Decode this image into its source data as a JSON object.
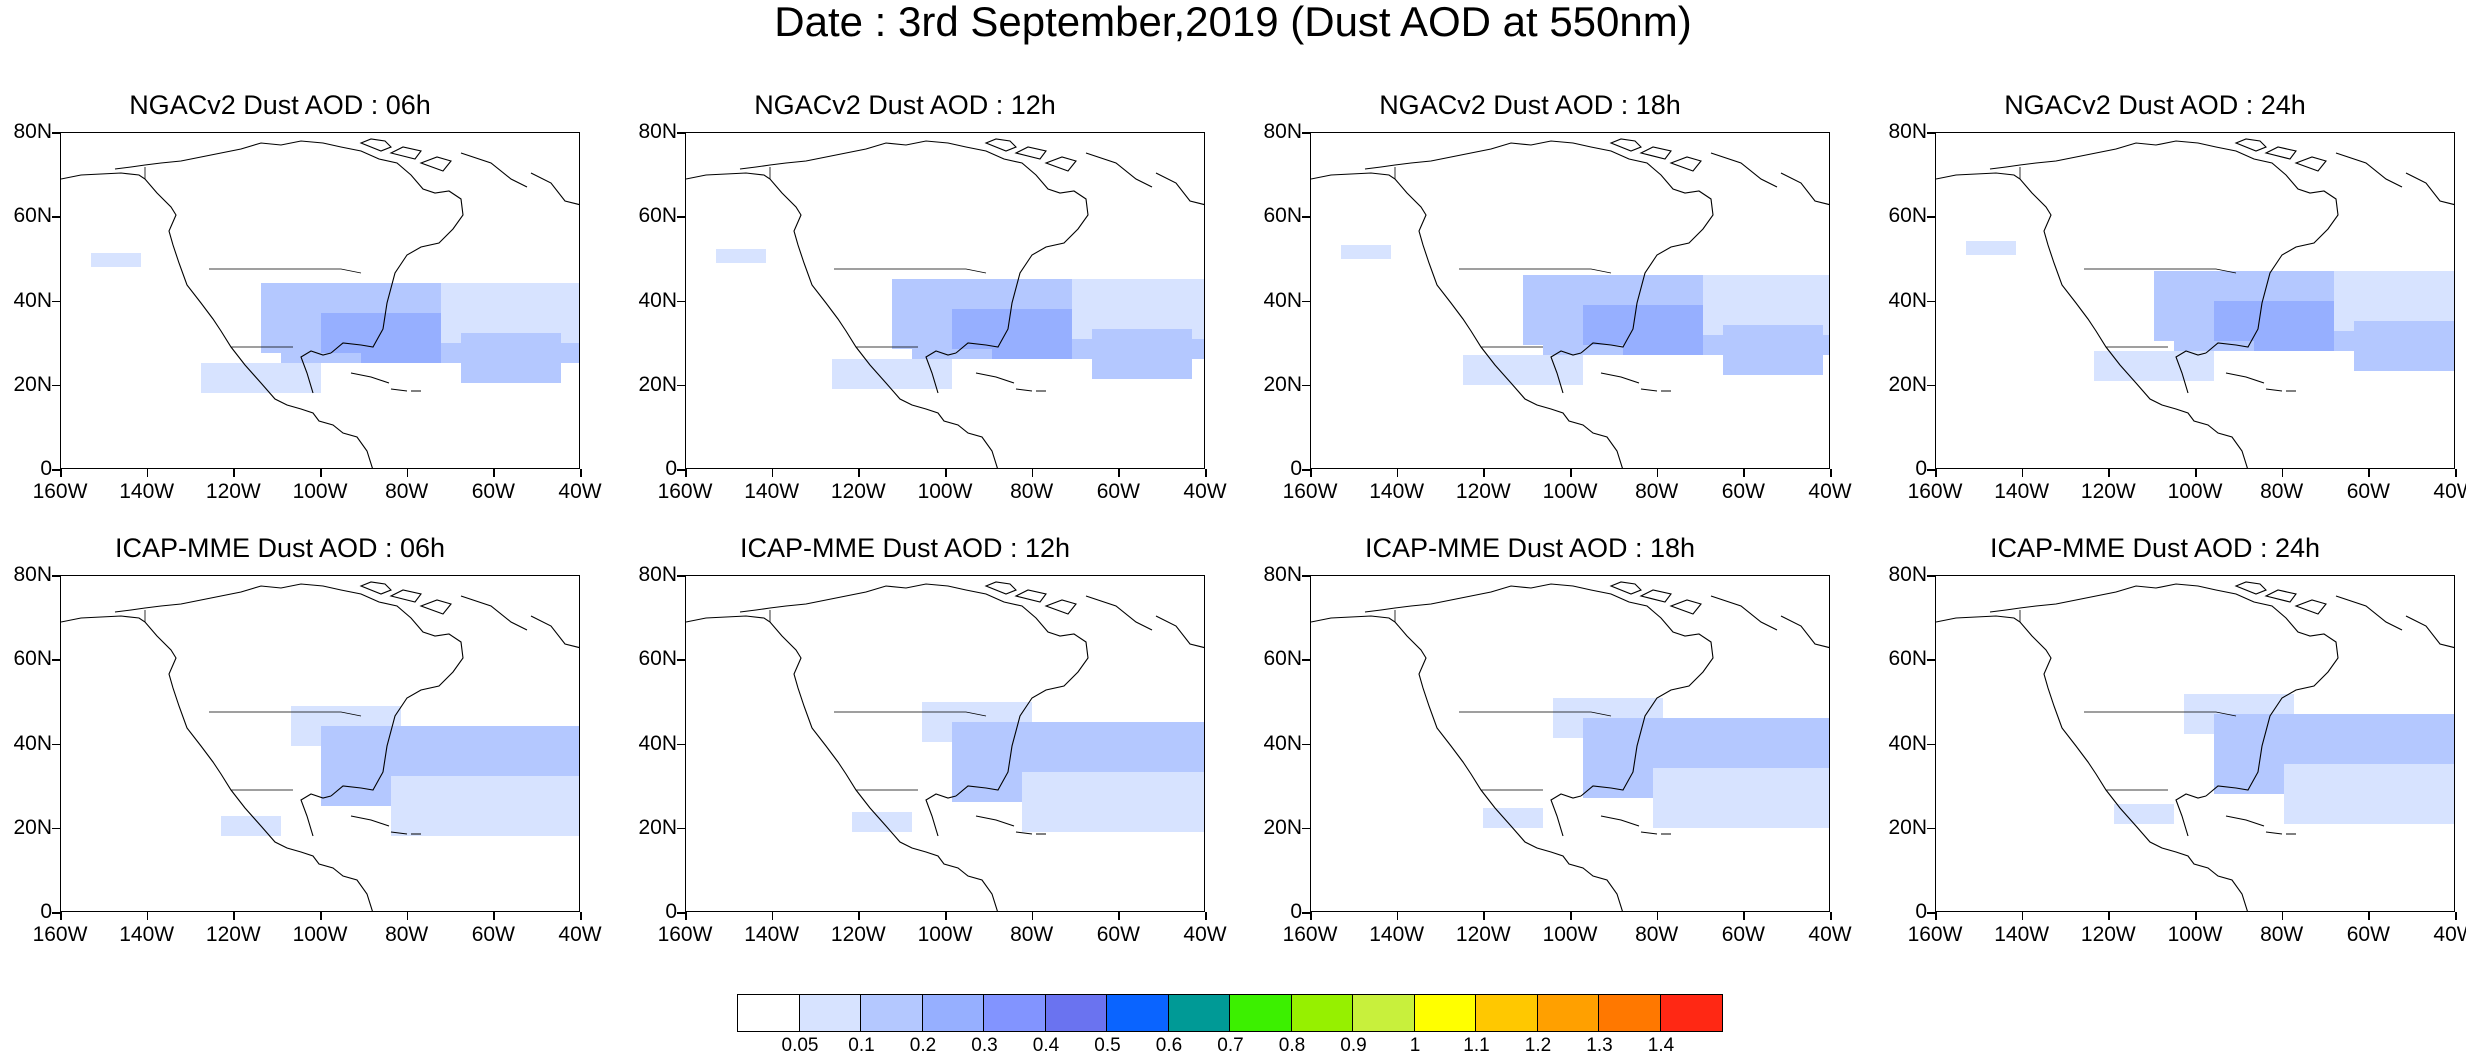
{
  "title": "Date : 3rd September,2019 (Dust AOD at 550nm)",
  "lat_labels": [
    "80N",
    "60N",
    "40N",
    "20N",
    "0"
  ],
  "lon_labels": [
    "160W",
    "140W",
    "120W",
    "100W",
    "80W",
    "60W",
    "40W"
  ],
  "panels": [
    {
      "title": "NGACv2 Dust AOD : 06h",
      "model": "NGACv2",
      "hour": "06h"
    },
    {
      "title": "NGACv2 Dust AOD : 12h",
      "model": "NGACv2",
      "hour": "12h"
    },
    {
      "title": "NGACv2 Dust AOD : 18h",
      "model": "NGACv2",
      "hour": "18h"
    },
    {
      "title": "NGACv2 Dust AOD : 24h",
      "model": "NGACv2",
      "hour": "24h"
    },
    {
      "title": "ICAP-MME Dust AOD : 06h",
      "model": "ICAP-MME",
      "hour": "06h"
    },
    {
      "title": "ICAP-MME Dust AOD : 12h",
      "model": "ICAP-MME",
      "hour": "12h"
    },
    {
      "title": "ICAP-MME Dust AOD : 18h",
      "model": "ICAP-MME",
      "hour": "18h"
    },
    {
      "title": "ICAP-MME Dust AOD : 24h",
      "model": "ICAP-MME",
      "hour": "24h"
    }
  ],
  "colorbar": {
    "labels": [
      "0.05",
      "0.1",
      "0.2",
      "0.3",
      "0.4",
      "0.5",
      "0.6",
      "0.7",
      "0.8",
      "0.9",
      "1",
      "1.1",
      "1.2",
      "1.3",
      "1.4"
    ],
    "colors": [
      "#ffffff",
      "#d7e3ff",
      "#b4c8ff",
      "#96afff",
      "#8294ff",
      "#6a73f0",
      "#0a64ff",
      "#009a96",
      "#3cf000",
      "#96f000",
      "#c8f03c",
      "#ffff00",
      "#ffc800",
      "#ffa000",
      "#ff7800",
      "#ff2814"
    ]
  }
}
